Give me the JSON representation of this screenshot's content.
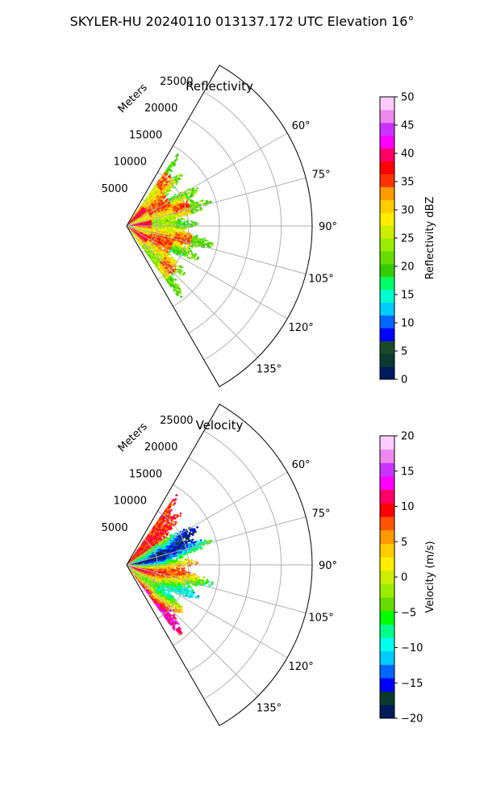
{
  "figure": {
    "title": "SKYLER-HU  20240110  013137.172 UTC Elevation 16°"
  },
  "chart_data": [
    {
      "type": "polar-sector",
      "title": "Reflectivity",
      "range_label": "Meters",
      "angle_range_deg": [
        30,
        150
      ],
      "range_max": 30000,
      "range_ticks": [
        5000,
        10000,
        15000,
        20000,
        25000
      ],
      "range_tick_labels": [
        "5000",
        "10000",
        "15000",
        "20000",
        "25000"
      ],
      "angle_ticks": [
        60,
        75,
        90,
        105,
        120,
        135
      ],
      "angle_tick_labels": [
        "60°",
        "75°",
        "90°",
        "105°",
        "120°",
        "135°"
      ],
      "grid": true,
      "colorbar": {
        "label": "Reflectivity dBZ",
        "min": 0,
        "max": 50,
        "ticks": [
          0,
          5,
          10,
          15,
          20,
          25,
          30,
          35,
          40,
          45,
          50
        ],
        "tick_labels": [
          "0",
          "5",
          "10",
          "15",
          "20",
          "25",
          "30",
          "35",
          "40",
          "45",
          "50"
        ],
        "colormap": [
          "#001a5c",
          "#0a3b2e",
          "#1a4a2a",
          "#0000ff",
          "#0066ff",
          "#00ccff",
          "#00ffcc",
          "#00ff66",
          "#33cc00",
          "#66dd00",
          "#99ee00",
          "#ccee00",
          "#ffee00",
          "#ffcc00",
          "#ff9900",
          "#ff3300",
          "#ff0000",
          "#ff0066",
          "#ff00ff",
          "#cc33ff",
          "#ee88ee",
          "#ffccff"
        ]
      },
      "data_extent": {
        "angle_deg": [
          35,
          144
        ],
        "range_max_m": 14500
      }
    },
    {
      "type": "polar-sector",
      "title": "Velocity",
      "range_label": "Meters",
      "angle_range_deg": [
        30,
        150
      ],
      "range_max": 30000,
      "range_ticks": [
        5000,
        10000,
        15000,
        20000,
        25000
      ],
      "range_tick_labels": [
        "5000",
        "10000",
        "15000",
        "20000",
        "25000"
      ],
      "angle_ticks": [
        60,
        75,
        90,
        105,
        120,
        135
      ],
      "angle_tick_labels": [
        "60°",
        "75°",
        "90°",
        "105°",
        "120°",
        "135°"
      ],
      "grid": true,
      "colorbar": {
        "label": "Velocity (m/s)",
        "min": -20,
        "max": 20,
        "ticks": [
          -20,
          -15,
          -10,
          -5,
          0,
          5,
          10,
          15,
          20
        ],
        "tick_labels": [
          "−20",
          "−15",
          "−10",
          "−5",
          "0",
          "5",
          "10",
          "15",
          "20"
        ],
        "colormap": [
          "#001a5c",
          "#0a3b2e",
          "#0000ff",
          "#0066ff",
          "#00ccff",
          "#00ffee",
          "#00ff88",
          "#00ff00",
          "#66dd00",
          "#99ee00",
          "#ccee00",
          "#ffee00",
          "#ffcc00",
          "#ff9900",
          "#ff5500",
          "#ff0000",
          "#ff0066",
          "#ff00ff",
          "#cc33ff",
          "#ee88ee",
          "#ffccff"
        ]
      },
      "data_extent": {
        "angle_deg": [
          35,
          144
        ],
        "range_max_m": 14500
      }
    }
  ]
}
